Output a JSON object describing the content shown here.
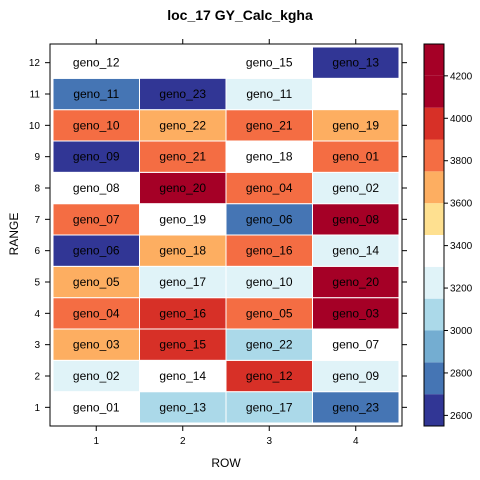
{
  "chart_data": {
    "type": "heatmap",
    "title": "loc_17 GY_Calc_kgha",
    "xlabel": "ROW",
    "ylabel": "RANGE",
    "x_categories": [
      "1",
      "2",
      "3",
      "4"
    ],
    "y_categories": [
      "1",
      "2",
      "3",
      "4",
      "5",
      "6",
      "7",
      "8",
      "9",
      "10",
      "11",
      "12"
    ],
    "colorbar": {
      "ticks": [
        2600,
        2800,
        3000,
        3200,
        3400,
        3600,
        3800,
        4000,
        4200
      ],
      "breaks": [
        2550,
        2700,
        2850,
        3000,
        3150,
        3300,
        3450,
        3600,
        3750,
        3900,
        4050,
        4200,
        4350
      ],
      "colors": [
        "#313695",
        "#4575b4",
        "#74add1",
        "#abd9e9",
        "#e0f3f8",
        "#ffffff",
        "#fee090",
        "#fdae61",
        "#f46d43",
        "#d73027",
        "#a50026",
        "#a50026"
      ]
    },
    "cells": [
      {
        "row": 1,
        "range": 1,
        "label": "geno_01",
        "value": 3375
      },
      {
        "row": 2,
        "range": 1,
        "label": "geno_13",
        "value": 3075
      },
      {
        "row": 3,
        "range": 1,
        "label": "geno_17",
        "value": 3075
      },
      {
        "row": 4,
        "range": 1,
        "label": "geno_23",
        "value": 2775
      },
      {
        "row": 1,
        "range": 2,
        "label": "geno_02",
        "value": 3225
      },
      {
        "row": 2,
        "range": 2,
        "label": "geno_14",
        "value": 3375
      },
      {
        "row": 3,
        "range": 2,
        "label": "geno_12",
        "value": 3975
      },
      {
        "row": 4,
        "range": 2,
        "label": "geno_09",
        "value": 3225
      },
      {
        "row": 1,
        "range": 3,
        "label": "geno_03",
        "value": 3675
      },
      {
        "row": 2,
        "range": 3,
        "label": "geno_15",
        "value": 3975
      },
      {
        "row": 3,
        "range": 3,
        "label": "geno_22",
        "value": 3075
      },
      {
        "row": 4,
        "range": 3,
        "label": "geno_07",
        "value": 3375
      },
      {
        "row": 1,
        "range": 4,
        "label": "geno_04",
        "value": 3825
      },
      {
        "row": 2,
        "range": 4,
        "label": "geno_16",
        "value": 3975
      },
      {
        "row": 3,
        "range": 4,
        "label": "geno_05",
        "value": 3825
      },
      {
        "row": 4,
        "range": 4,
        "label": "geno_03",
        "value": 4275
      },
      {
        "row": 1,
        "range": 5,
        "label": "geno_05",
        "value": 3675
      },
      {
        "row": 2,
        "range": 5,
        "label": "geno_17",
        "value": 3225
      },
      {
        "row": 3,
        "range": 5,
        "label": "geno_10",
        "value": 3225
      },
      {
        "row": 4,
        "range": 5,
        "label": "geno_20",
        "value": 4275
      },
      {
        "row": 1,
        "range": 6,
        "label": "geno_06",
        "value": 2625
      },
      {
        "row": 2,
        "range": 6,
        "label": "geno_18",
        "value": 3675
      },
      {
        "row": 3,
        "range": 6,
        "label": "geno_16",
        "value": 3825
      },
      {
        "row": 4,
        "range": 6,
        "label": "geno_14",
        "value": 3225
      },
      {
        "row": 1,
        "range": 7,
        "label": "geno_07",
        "value": 3825
      },
      {
        "row": 2,
        "range": 7,
        "label": "geno_19",
        "value": 3375
      },
      {
        "row": 3,
        "range": 7,
        "label": "geno_06",
        "value": 2775
      },
      {
        "row": 4,
        "range": 7,
        "label": "geno_08",
        "value": 4275
      },
      {
        "row": 1,
        "range": 8,
        "label": "geno_08",
        "value": 3375
      },
      {
        "row": 2,
        "range": 8,
        "label": "geno_20",
        "value": 4275
      },
      {
        "row": 3,
        "range": 8,
        "label": "geno_04",
        "value": 3825
      },
      {
        "row": 4,
        "range": 8,
        "label": "geno_02",
        "value": 3225
      },
      {
        "row": 1,
        "range": 9,
        "label": "geno_09",
        "value": 2625
      },
      {
        "row": 2,
        "range": 9,
        "label": "geno_21",
        "value": 3825
      },
      {
        "row": 3,
        "range": 9,
        "label": "geno_18",
        "value": 3375
      },
      {
        "row": 4,
        "range": 9,
        "label": "geno_01",
        "value": 3825
      },
      {
        "row": 1,
        "range": 10,
        "label": "geno_10",
        "value": 3825
      },
      {
        "row": 2,
        "range": 10,
        "label": "geno_22",
        "value": 3675
      },
      {
        "row": 3,
        "range": 10,
        "label": "geno_21",
        "value": 3825
      },
      {
        "row": 4,
        "range": 10,
        "label": "geno_19",
        "value": 3675
      },
      {
        "row": 1,
        "range": 11,
        "label": "geno_11",
        "value": 2775
      },
      {
        "row": 2,
        "range": 11,
        "label": "geno_23",
        "value": 2625
      },
      {
        "row": 3,
        "range": 11,
        "label": "geno_11",
        "value": 3225
      },
      {
        "row": 1,
        "range": 12,
        "label": "geno_12",
        "value": 3375
      },
      {
        "row": 3,
        "range": 12,
        "label": "geno_15",
        "value": 3375
      },
      {
        "row": 4,
        "range": 12,
        "label": "geno_13",
        "value": 2625
      }
    ]
  }
}
